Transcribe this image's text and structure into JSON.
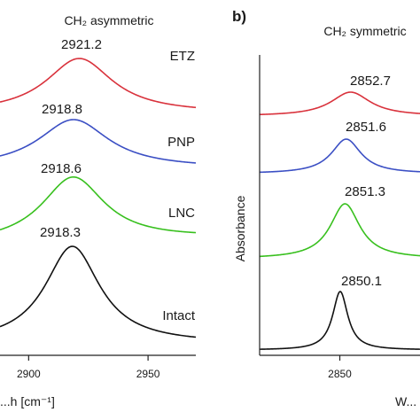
{
  "chart_data": [
    {
      "type": "line",
      "title": "CH₂ asymmetric",
      "xlabel": "...h [cm⁻¹]",
      "ylabel": "",
      "xlim": [
        2888,
        2970
      ],
      "x_ticks": [
        2900,
        2950
      ],
      "x_tick_labels": [
        "2900",
        "2950"
      ],
      "series": [
        {
          "name": "ETZ",
          "peak": 2921.2,
          "peak_label": "2921.2",
          "color": "#d9323c",
          "width": 17
        },
        {
          "name": "PNP",
          "peak": 2918.8,
          "peak_label": "2918.8",
          "color": "#3b4fc4",
          "width": 18
        },
        {
          "name": "LNC",
          "peak": 2918.6,
          "peak_label": "2918.6",
          "color": "#38c01e",
          "width": 16
        },
        {
          "name": "Intact",
          "peak": 2918.3,
          "peak_label": "2918.3",
          "color": "#111111",
          "width": 14
        }
      ]
    },
    {
      "type": "line",
      "panel_label": "b)",
      "title": "CH₂ symmetric",
      "xlabel": "W...",
      "ylabel": "Absorbance",
      "xlim": [
        2830,
        2870
      ],
      "x_ticks": [
        2850
      ],
      "x_tick_labels": [
        "2850"
      ],
      "series": [
        {
          "name": "",
          "peak": 2852.7,
          "peak_label": "2852.7",
          "color": "#d9323c",
          "width": 6
        },
        {
          "name": "",
          "peak": 2851.6,
          "peak_label": "2851.6",
          "color": "#3b4fc4",
          "width": 4.5
        },
        {
          "name": "",
          "peak": 2851.3,
          "peak_label": "2851.3",
          "color": "#38c01e",
          "width": 4.5
        },
        {
          "name": "",
          "peak": 2850.1,
          "peak_label": "2850.1",
          "color": "#111111",
          "width": 2.3
        }
      ]
    }
  ]
}
